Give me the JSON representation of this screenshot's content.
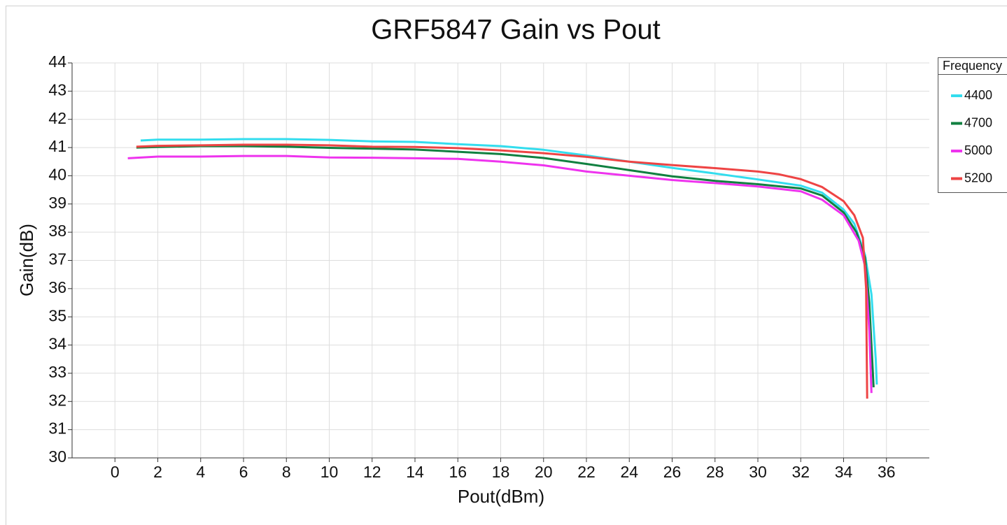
{
  "chart_data": {
    "type": "line",
    "title": "GRF5847 Gain vs Pout",
    "x_label": "Pout(dBm)",
    "y_label": "Gain(dB)",
    "legend_title": "Frequency",
    "legend_position": "right",
    "grid": true,
    "xlim": [
      -2,
      38
    ],
    "xticks": [
      0,
      2,
      4,
      6,
      8,
      10,
      12,
      14,
      16,
      18,
      20,
      22,
      24,
      26,
      28,
      30,
      32,
      34,
      36
    ],
    "ylim": [
      30,
      44
    ],
    "yticks": [
      30,
      31,
      32,
      33,
      34,
      35,
      36,
      37,
      38,
      39,
      40,
      41,
      42,
      43,
      44
    ],
    "series": [
      {
        "name": "4400",
        "color": "#33ddee",
        "x": [
          1.2,
          2,
          4,
          6,
          8,
          10,
          12,
          14,
          16,
          18,
          20,
          22,
          24,
          26,
          28,
          30,
          32,
          33,
          34,
          34.5,
          35,
          35.3,
          35.5,
          35.55
        ],
        "values": [
          41.25,
          41.28,
          41.28,
          41.3,
          41.3,
          41.27,
          41.22,
          41.2,
          41.12,
          41.05,
          40.92,
          40.72,
          40.5,
          40.28,
          40.08,
          39.87,
          39.65,
          39.4,
          38.8,
          38.3,
          37.2,
          35.8,
          33.5,
          32.6
        ]
      },
      {
        "name": "4700",
        "color": "#108040",
        "x": [
          1,
          2,
          4,
          6,
          8,
          10,
          12,
          14,
          16,
          18,
          20,
          22,
          24,
          26,
          28,
          30,
          32,
          33,
          34,
          34.6,
          35,
          35.2,
          35.4
        ],
        "values": [
          41.0,
          41.02,
          41.05,
          41.05,
          41.03,
          40.99,
          40.96,
          40.93,
          40.85,
          40.77,
          40.63,
          40.42,
          40.2,
          39.98,
          39.82,
          39.7,
          39.55,
          39.3,
          38.7,
          38.0,
          37.1,
          35.5,
          32.5
        ]
      },
      {
        "name": "5000",
        "color": "#ee33ee",
        "x": [
          0.6,
          2,
          4,
          6,
          8,
          10,
          12,
          14,
          16,
          18,
          20,
          22,
          24,
          26,
          28,
          30,
          32,
          33,
          34,
          34.7,
          35,
          35.2,
          35.3
        ],
        "values": [
          40.62,
          40.68,
          40.68,
          40.7,
          40.7,
          40.65,
          40.64,
          40.62,
          40.6,
          40.5,
          40.37,
          40.15,
          40.0,
          39.85,
          39.74,
          39.62,
          39.45,
          39.15,
          38.6,
          37.7,
          36.8,
          34.5,
          32.3
        ]
      },
      {
        "name": "5200",
        "color": "#ee4444",
        "x": [
          1,
          2,
          4,
          6,
          8,
          10,
          12,
          14,
          16,
          18,
          20,
          22,
          24,
          26,
          28,
          30,
          31,
          32,
          33,
          34,
          34.5,
          34.9,
          35.05,
          35.1
        ],
        "values": [
          41.03,
          41.06,
          41.08,
          41.1,
          41.1,
          41.08,
          41.03,
          41.02,
          40.98,
          40.9,
          40.8,
          40.67,
          40.5,
          40.38,
          40.27,
          40.15,
          40.05,
          39.88,
          39.6,
          39.1,
          38.6,
          37.8,
          36.0,
          32.1
        ]
      }
    ]
  }
}
